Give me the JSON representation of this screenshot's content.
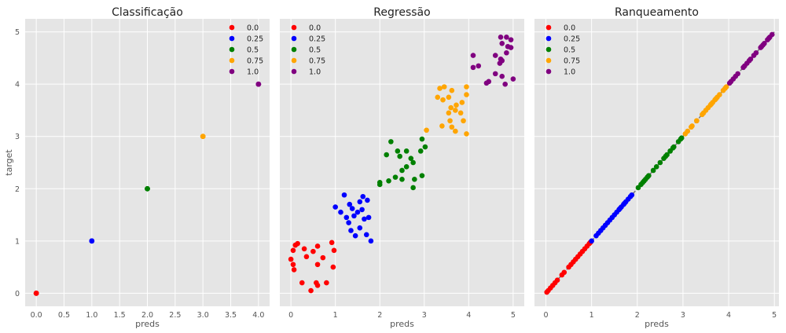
{
  "figure": {
    "shared_y_label": "target",
    "colors": {
      "plot_bg": "#e5e5e5",
      "grid": "#ffffff",
      "text": "#555555",
      "title": "#222222"
    }
  },
  "legend_entries": [
    {
      "label": "0.0",
      "color": "#ff0000"
    },
    {
      "label": "0.25",
      "color": "#0000ff"
    },
    {
      "label": "0.5",
      "color": "#008000"
    },
    {
      "label": "0.75",
      "color": "#ffa500"
    },
    {
      "label": "1.0",
      "color": "#800080"
    }
  ],
  "chart_data": [
    {
      "type": "scatter",
      "title": "Classificação",
      "xlabel": "preds",
      "ylabel": "target",
      "xlim": [
        -0.2,
        4.2
      ],
      "ylim": [
        -0.25,
        5.25
      ],
      "xticks": [
        "0.0",
        "0.5",
        "1.0",
        "1.5",
        "2.0",
        "2.5",
        "3.0",
        "3.5",
        "4.0"
      ],
      "yticks": [
        "0",
        "1",
        "2",
        "3",
        "4",
        "5"
      ],
      "legend_position": "top-right",
      "grid": true,
      "series": [
        {
          "name": "0.0",
          "color": "#ff0000",
          "points": [
            [
              0,
              0
            ],
            [
              0,
              0
            ],
            [
              0,
              0
            ],
            [
              0,
              0
            ],
            [
              0,
              0
            ]
          ]
        },
        {
          "name": "0.25",
          "color": "#0000ff",
          "points": [
            [
              1,
              1
            ],
            [
              1,
              1
            ],
            [
              1,
              1
            ],
            [
              1,
              1
            ],
            [
              1,
              1
            ]
          ]
        },
        {
          "name": "0.5",
          "color": "#008000",
          "points": [
            [
              2,
              2
            ],
            [
              2,
              2
            ],
            [
              2,
              2
            ],
            [
              2,
              2
            ],
            [
              2,
              2
            ]
          ]
        },
        {
          "name": "0.75",
          "color": "#ffa500",
          "points": [
            [
              3,
              3
            ],
            [
              3,
              3
            ],
            [
              3,
              3
            ],
            [
              3,
              3
            ],
            [
              3,
              3
            ]
          ]
        },
        {
          "name": "1.0",
          "color": "#800080",
          "points": [
            [
              4,
              4
            ],
            [
              4,
              4
            ],
            [
              4,
              4
            ],
            [
              4,
              4
            ],
            [
              4,
              4
            ]
          ]
        }
      ]
    },
    {
      "type": "scatter",
      "title": "Regressão",
      "xlabel": "preds",
      "ylabel": "",
      "xlim": [
        -0.25,
        5.25
      ],
      "ylim": [
        -0.25,
        5.25
      ],
      "xticks": [
        "0",
        "1",
        "2",
        "3",
        "4",
        "5"
      ],
      "yticks": [],
      "legend_position": "top-left",
      "grid": true,
      "series": [
        {
          "name": "0.0",
          "color": "#ff0000",
          "points": [
            [
              0.1,
              0.92
            ],
            [
              0.15,
              0.95
            ],
            [
              0.05,
              0.82
            ],
            [
              0.3,
              0.85
            ],
            [
              0.5,
              0.8
            ],
            [
              0.6,
              0.9
            ],
            [
              0.92,
              0.97
            ],
            [
              0.97,
              0.82
            ],
            [
              0.35,
              0.7
            ],
            [
              0.72,
              0.68
            ],
            [
              0.0,
              0.65
            ],
            [
              0.07,
              0.45
            ],
            [
              0.6,
              0.55
            ],
            [
              0.25,
              0.2
            ],
            [
              0.57,
              0.2
            ],
            [
              0.6,
              0.15
            ],
            [
              0.8,
              0.2
            ],
            [
              0.95,
              0.5
            ],
            [
              0.45,
              0.05
            ],
            [
              0.05,
              0.55
            ]
          ]
        },
        {
          "name": "0.25",
          "color": "#0000ff",
          "points": [
            [
              1.2,
              1.88
            ],
            [
              1.62,
              1.85
            ],
            [
              1.72,
              1.78
            ],
            [
              1.0,
              1.65
            ],
            [
              1.32,
              1.7
            ],
            [
              1.55,
              1.75
            ],
            [
              1.38,
              1.62
            ],
            [
              1.12,
              1.55
            ],
            [
              1.25,
              1.45
            ],
            [
              1.5,
              1.55
            ],
            [
              1.6,
              1.6
            ],
            [
              1.42,
              1.48
            ],
            [
              1.65,
              1.42
            ],
            [
              1.75,
              1.45
            ],
            [
              1.3,
              1.35
            ],
            [
              1.55,
              1.25
            ],
            [
              1.35,
              1.2
            ],
            [
              1.45,
              1.1
            ],
            [
              1.7,
              1.12
            ],
            [
              1.8,
              1.0
            ]
          ]
        },
        {
          "name": "0.5",
          "color": "#008000",
          "points": [
            [
              2.25,
              2.9
            ],
            [
              2.95,
              2.95
            ],
            [
              3.02,
              2.8
            ],
            [
              2.4,
              2.72
            ],
            [
              2.6,
              2.72
            ],
            [
              2.15,
              2.65
            ],
            [
              2.45,
              2.62
            ],
            [
              2.7,
              2.58
            ],
            [
              2.92,
              2.72
            ],
            [
              2.75,
              2.5
            ],
            [
              2.6,
              2.42
            ],
            [
              2.5,
              2.35
            ],
            [
              2.35,
              2.22
            ],
            [
              2.5,
              2.18
            ],
            [
              2.95,
              2.25
            ],
            [
              2.0,
              2.12
            ],
            [
              2.2,
              2.15
            ],
            [
              2.78,
              2.18
            ],
            [
              2.0,
              2.08
            ],
            [
              2.75,
              2.02
            ]
          ]
        },
        {
          "name": "0.75",
          "color": "#ffa500",
          "points": [
            [
              3.05,
              3.12
            ],
            [
              3.4,
              3.2
            ],
            [
              3.58,
              3.3
            ],
            [
              3.62,
              3.18
            ],
            [
              3.7,
              3.1
            ],
            [
              3.95,
              3.05
            ],
            [
              3.55,
              3.45
            ],
            [
              3.7,
              3.5
            ],
            [
              3.82,
              3.45
            ],
            [
              3.88,
              3.3
            ],
            [
              3.6,
              3.55
            ],
            [
              3.72,
              3.6
            ],
            [
              3.85,
              3.65
            ],
            [
              3.95,
              3.8
            ],
            [
              3.3,
              3.75
            ],
            [
              3.42,
              3.7
            ],
            [
              3.55,
              3.75
            ],
            [
              3.35,
              3.92
            ],
            [
              3.45,
              3.95
            ],
            [
              3.62,
              3.88
            ],
            [
              3.95,
              3.95
            ]
          ]
        },
        {
          "name": "1.0",
          "color": "#800080",
          "points": [
            [
              4.72,
              4.9
            ],
            [
              4.85,
              4.9
            ],
            [
              4.95,
              4.85
            ],
            [
              4.88,
              4.72
            ],
            [
              4.95,
              4.7
            ],
            [
              4.75,
              4.78
            ],
            [
              4.6,
              4.55
            ],
            [
              4.1,
              4.55
            ],
            [
              4.1,
              4.32
            ],
            [
              4.72,
              4.48
            ],
            [
              4.75,
              4.45
            ],
            [
              4.7,
              4.4
            ],
            [
              4.22,
              4.35
            ],
            [
              4.85,
              4.6
            ],
            [
              4.75,
              4.15
            ],
            [
              4.6,
              4.2
            ],
            [
              4.45,
              4.05
            ],
            [
              4.4,
              4.02
            ],
            [
              4.82,
              4.0
            ],
            [
              5.0,
              4.1
            ]
          ]
        }
      ]
    },
    {
      "type": "scatter",
      "title": "Ranqueamento",
      "xlabel": "preds",
      "ylabel": "",
      "xlim": [
        -0.25,
        5.1
      ],
      "ylim": [
        -0.25,
        5.25
      ],
      "xticks": [
        "0",
        "1",
        "2",
        "3",
        "4",
        "5"
      ],
      "yticks": [],
      "legend_position": "top-left",
      "grid": true,
      "reference_line": {
        "from": [
          0,
          0
        ],
        "to": [
          5,
          5
        ],
        "color": "#777777",
        "dashed": true
      },
      "series": [
        {
          "name": "0.0",
          "color": "#ff0000",
          "points": [
            [
              0.02,
              0.02
            ],
            [
              0.05,
              0.05
            ],
            [
              0.1,
              0.1
            ],
            [
              0.15,
              0.15
            ],
            [
              0.2,
              0.2
            ],
            [
              0.25,
              0.25
            ],
            [
              0.35,
              0.35
            ],
            [
              0.4,
              0.4
            ],
            [
              0.5,
              0.5
            ],
            [
              0.55,
              0.55
            ],
            [
              0.6,
              0.6
            ],
            [
              0.65,
              0.65
            ],
            [
              0.7,
              0.7
            ],
            [
              0.75,
              0.75
            ],
            [
              0.8,
              0.8
            ],
            [
              0.85,
              0.85
            ],
            [
              0.9,
              0.9
            ],
            [
              0.95,
              0.95
            ],
            [
              0.97,
              0.97
            ],
            [
              0.98,
              0.98
            ]
          ]
        },
        {
          "name": "0.25",
          "color": "#0000ff",
          "points": [
            [
              1.0,
              1.0
            ],
            [
              1.1,
              1.1
            ],
            [
              1.15,
              1.15
            ],
            [
              1.2,
              1.2
            ],
            [
              1.25,
              1.25
            ],
            [
              1.3,
              1.3
            ],
            [
              1.35,
              1.35
            ],
            [
              1.4,
              1.4
            ],
            [
              1.45,
              1.45
            ],
            [
              1.5,
              1.5
            ],
            [
              1.55,
              1.55
            ],
            [
              1.6,
              1.6
            ],
            [
              1.62,
              1.62
            ],
            [
              1.65,
              1.65
            ],
            [
              1.7,
              1.7
            ],
            [
              1.72,
              1.72
            ],
            [
              1.75,
              1.75
            ],
            [
              1.8,
              1.8
            ],
            [
              1.85,
              1.85
            ],
            [
              1.88,
              1.88
            ]
          ]
        },
        {
          "name": "0.5",
          "color": "#008000",
          "points": [
            [
              2.02,
              2.02
            ],
            [
              2.08,
              2.08
            ],
            [
              2.12,
              2.12
            ],
            [
              2.15,
              2.15
            ],
            [
              2.18,
              2.18
            ],
            [
              2.22,
              2.22
            ],
            [
              2.25,
              2.25
            ],
            [
              2.35,
              2.35
            ],
            [
              2.42,
              2.42
            ],
            [
              2.5,
              2.5
            ],
            [
              2.58,
              2.58
            ],
            [
              2.62,
              2.62
            ],
            [
              2.65,
              2.65
            ],
            [
              2.72,
              2.72
            ],
            [
              2.78,
              2.78
            ],
            [
              2.8,
              2.8
            ],
            [
              2.9,
              2.9
            ],
            [
              2.95,
              2.95
            ],
            [
              2.97,
              2.97
            ],
            [
              2.72,
              2.72
            ]
          ]
        },
        {
          "name": "0.75",
          "color": "#ffa500",
          "points": [
            [
              3.05,
              3.05
            ],
            [
              3.1,
              3.1
            ],
            [
              3.18,
              3.18
            ],
            [
              3.2,
              3.2
            ],
            [
              3.3,
              3.3
            ],
            [
              3.45,
              3.45
            ],
            [
              3.5,
              3.5
            ],
            [
              3.55,
              3.55
            ],
            [
              3.6,
              3.6
            ],
            [
              3.65,
              3.65
            ],
            [
              3.7,
              3.7
            ],
            [
              3.75,
              3.75
            ],
            [
              3.8,
              3.8
            ],
            [
              3.88,
              3.88
            ],
            [
              3.92,
              3.92
            ],
            [
              3.95,
              3.95
            ],
            [
              3.3,
              3.3
            ],
            [
              3.42,
              3.42
            ],
            [
              3.62,
              3.62
            ],
            [
              3.72,
              3.72
            ]
          ]
        },
        {
          "name": "1.0",
          "color": "#800080",
          "points": [
            [
              4.02,
              4.02
            ],
            [
              4.05,
              4.05
            ],
            [
              4.1,
              4.1
            ],
            [
              4.15,
              4.15
            ],
            [
              4.2,
              4.2
            ],
            [
              4.32,
              4.32
            ],
            [
              4.35,
              4.35
            ],
            [
              4.4,
              4.4
            ],
            [
              4.45,
              4.45
            ],
            [
              4.48,
              4.48
            ],
            [
              4.55,
              4.55
            ],
            [
              4.6,
              4.6
            ],
            [
              4.7,
              4.7
            ],
            [
              4.72,
              4.72
            ],
            [
              4.75,
              4.75
            ],
            [
              4.78,
              4.78
            ],
            [
              4.85,
              4.85
            ],
            [
              4.88,
              4.88
            ],
            [
              4.9,
              4.9
            ],
            [
              4.95,
              4.95
            ]
          ]
        }
      ]
    }
  ]
}
